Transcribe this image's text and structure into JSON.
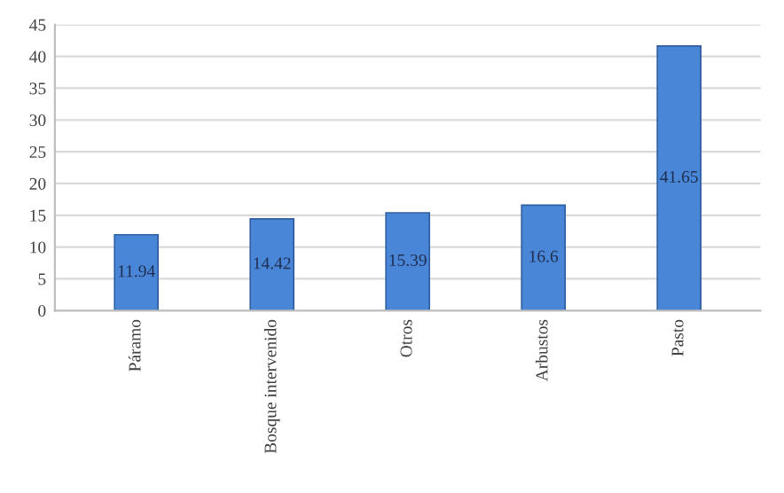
{
  "chart_data": {
    "type": "bar",
    "categories": [
      "Páramo",
      "Bosque intervenido",
      "Otros",
      "Arbustos",
      "Pasto"
    ],
    "values": [
      11.94,
      14.42,
      15.39,
      16.6,
      41.65
    ],
    "color": "#4a86d8",
    "ylim": [
      0,
      45
    ],
    "yticks": [
      0,
      5,
      10,
      15,
      20,
      25,
      30,
      35,
      40,
      45
    ],
    "grid": "y",
    "data_labels": true
  }
}
